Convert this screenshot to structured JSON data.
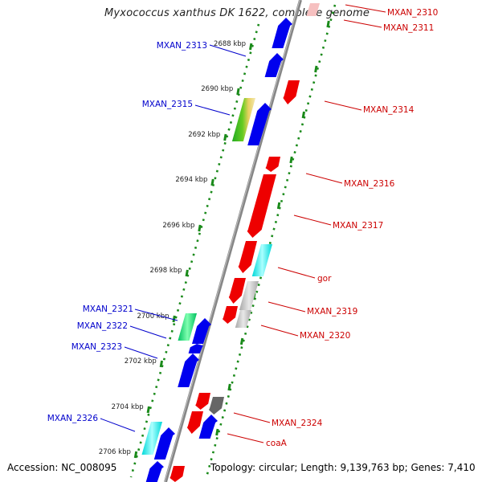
{
  "title": "Myxococcus xanthus DK 1622, complete genome",
  "footer": {
    "accession": "Accession: NC_008095",
    "summary": "Topology: circular; Length: 9,139,763 bp; Genes: 7,410"
  },
  "colors": {
    "backbone": "#888888",
    "tick": "#1a8a1a",
    "forward_label": "#cc0000",
    "reverse_label": "#0000cc"
  },
  "scale_ticks": [
    {
      "label": "2688 kbp"
    },
    {
      "label": "2690 kbp"
    },
    {
      "label": "2692 kbp"
    },
    {
      "label": "2694 kbp"
    },
    {
      "label": "2696 kbp"
    },
    {
      "label": "2698 kbp"
    },
    {
      "label": "2700 kbp"
    },
    {
      "label": "2702 kbp"
    },
    {
      "label": "2704 kbp"
    },
    {
      "label": "2706 kbp"
    }
  ],
  "reverse_genes": [
    {
      "label": "MXAN_2313"
    },
    {
      "label": "MXAN_2315"
    },
    {
      "label": "MXAN_2321"
    },
    {
      "label": "MXAN_2322"
    },
    {
      "label": "MXAN_2323"
    },
    {
      "label": "MXAN_2326"
    }
  ],
  "forward_genes": [
    {
      "label": "MXAN_2310"
    },
    {
      "label": "MXAN_2311"
    },
    {
      "label": "MXAN_2314"
    },
    {
      "label": "MXAN_2316"
    },
    {
      "label": "MXAN_2317"
    },
    {
      "label": "gor"
    },
    {
      "label": "MXAN_2319"
    },
    {
      "label": "MXAN_2320"
    },
    {
      "label": "MXAN_2324"
    },
    {
      "label": "coaA"
    }
  ]
}
